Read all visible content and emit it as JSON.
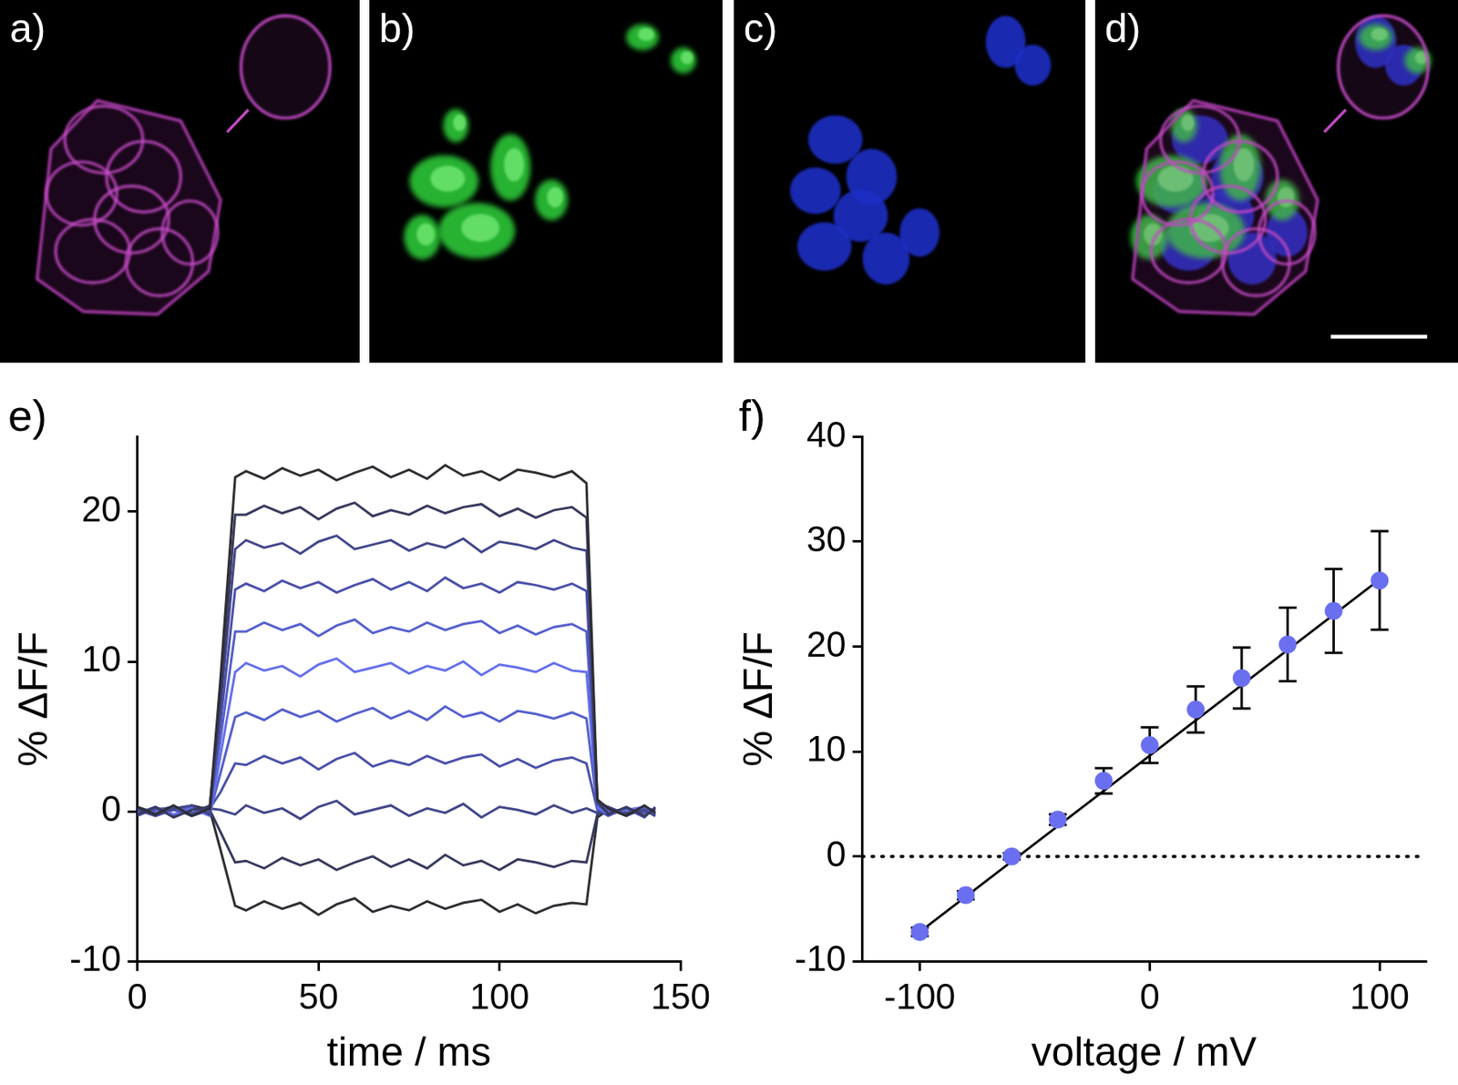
{
  "image_panels": [
    {
      "label": "a)"
    },
    {
      "label": "b)"
    },
    {
      "label": "c)"
    },
    {
      "label": "d)"
    }
  ],
  "chart_data": [
    {
      "panel_label": "e)",
      "type": "line",
      "x_label": "time / ms",
      "y_label": "% ΔF/F",
      "x": [
        0,
        5,
        10,
        15,
        20,
        23,
        27,
        30,
        35,
        40,
        45,
        50,
        55,
        60,
        65,
        70,
        75,
        80,
        85,
        90,
        95,
        100,
        105,
        110,
        115,
        120,
        124,
        127,
        130,
        135,
        140,
        143
      ],
      "series": [
        {
          "color": "#2e2e33",
          "values": [
            0.3,
            -0.2,
            0.4,
            -0.3,
            0.2,
            9.0,
            22.3,
            22.7,
            22.2,
            22.9,
            22.4,
            22.8,
            22.1,
            22.6,
            23.0,
            22.3,
            22.8,
            22.2,
            23.1,
            22.4,
            22.7,
            22.1,
            22.8,
            22.6,
            22.3,
            22.7,
            21.9,
            0.8,
            0.2,
            -0.3,
            0.4,
            -0.1
          ]
        },
        {
          "color": "#383a5e",
          "values": [
            -0.2,
            0.3,
            -0.4,
            0.1,
            0.3,
            8.0,
            19.8,
            19.8,
            20.4,
            19.9,
            20.3,
            19.5,
            20.2,
            20.6,
            19.7,
            20.1,
            19.8,
            20.4,
            19.9,
            20.3,
            20.5,
            19.7,
            20.2,
            19.6,
            20.1,
            20.3,
            19.6,
            0.7,
            -0.2,
            0.3,
            -0.3,
            0.2
          ]
        },
        {
          "color": "#42468a",
          "values": [
            0.1,
            -0.3,
            0.2,
            0.4,
            -0.2,
            7.1,
            17.5,
            18.1,
            17.6,
            17.9,
            17.2,
            18.0,
            18.4,
            17.5,
            17.8,
            18.1,
            17.4,
            17.9,
            17.6,
            18.2,
            17.3,
            18.0,
            17.8,
            17.5,
            18.1,
            17.6,
            17.4,
            0.6,
            0.3,
            -0.2,
            0.1,
            -0.3
          ]
        },
        {
          "color": "#4a50aa",
          "values": [
            -0.3,
            0.2,
            0.1,
            -0.2,
            0.4,
            6.0,
            14.8,
            15.2,
            14.7,
            15.4,
            14.9,
            15.3,
            14.6,
            15.1,
            15.5,
            14.8,
            15.3,
            14.7,
            15.6,
            14.9,
            15.2,
            14.6,
            15.3,
            15.1,
            14.8,
            15.2,
            14.7,
            0.5,
            -0.1,
            0.2,
            -0.4,
            0.3
          ]
        },
        {
          "color": "#5560cc",
          "values": [
            0.2,
            -0.1,
            0.3,
            -0.3,
            0.1,
            4.9,
            12.0,
            12.0,
            12.6,
            12.1,
            12.5,
            11.7,
            12.4,
            12.8,
            11.9,
            12.3,
            12.0,
            12.6,
            12.1,
            12.5,
            12.7,
            11.9,
            12.4,
            11.8,
            12.3,
            12.5,
            12.0,
            0.4,
            0.2,
            -0.3,
            0.2,
            0.1
          ]
        },
        {
          "color": "#6470ec",
          "values": [
            -0.1,
            0.3,
            -0.2,
            0.2,
            -0.3,
            3.8,
            9.3,
            9.9,
            9.4,
            9.7,
            9.0,
            9.8,
            10.2,
            9.3,
            9.6,
            9.9,
            9.2,
            9.7,
            9.4,
            10.0,
            9.1,
            9.8,
            9.6,
            9.3,
            9.9,
            9.4,
            9.3,
            0.3,
            -0.2,
            0.1,
            0.3,
            -0.2
          ]
        },
        {
          "color": "#5560cc",
          "values": [
            0.2,
            -0.3,
            0.1,
            0.3,
            -0.1,
            2.6,
            6.3,
            6.6,
            6.1,
            6.8,
            6.3,
            6.7,
            6.0,
            6.5,
            6.9,
            6.2,
            6.7,
            6.1,
            7.0,
            6.3,
            6.6,
            6.0,
            6.7,
            6.5,
            6.2,
            6.6,
            6.2,
            0.2,
            0.1,
            -0.2,
            0.3,
            0.0
          ]
        },
        {
          "color": "#4a50aa",
          "values": [
            -0.2,
            0.1,
            0.3,
            -0.1,
            0.2,
            1.3,
            3.2,
            3.1,
            3.7,
            3.2,
            3.6,
            2.8,
            3.5,
            3.9,
            3.0,
            3.4,
            3.1,
            3.7,
            3.2,
            3.6,
            3.8,
            3.0,
            3.5,
            2.9,
            3.4,
            3.6,
            3.2,
            0.1,
            -0.3,
            0.2,
            -0.1,
            0.2
          ]
        },
        {
          "color": "#42468a",
          "values": [
            0.1,
            -0.2,
            0.3,
            -0.1,
            0.2,
            0.1,
            -0.2,
            0.4,
            -0.1,
            0.2,
            -0.5,
            0.3,
            0.7,
            -0.2,
            0.1,
            0.4,
            -0.3,
            0.2,
            -0.1,
            0.5,
            -0.4,
            0.3,
            0.1,
            -0.2,
            0.4,
            -0.1,
            0.2,
            -0.1,
            0.3,
            -0.2,
            0.1,
            -0.3
          ]
        },
        {
          "color": "#383a5e",
          "values": [
            0.3,
            -0.1,
            0.2,
            -0.3,
            0.1,
            -1.4,
            -3.4,
            -3.3,
            -3.8,
            -3.1,
            -3.6,
            -3.2,
            -3.9,
            -3.4,
            -3.0,
            -3.7,
            -3.2,
            -3.8,
            -2.9,
            -3.6,
            -3.3,
            -3.9,
            -3.2,
            -3.4,
            -3.7,
            -3.3,
            -3.4,
            -0.2,
            0.2,
            -0.1,
            0.3,
            -0.2
          ]
        },
        {
          "color": "#2e2e33",
          "values": [
            -0.1,
            0.2,
            -0.3,
            0.4,
            0.1,
            -2.6,
            -6.3,
            -6.6,
            -6.0,
            -6.5,
            -6.1,
            -6.9,
            -6.2,
            -5.8,
            -6.7,
            -6.3,
            -6.6,
            -6.0,
            -6.5,
            -6.1,
            -5.9,
            -6.7,
            -6.2,
            -6.8,
            -6.3,
            -6.1,
            -6.2,
            -0.4,
            0.1,
            -0.2,
            0.2,
            -0.1
          ]
        }
      ],
      "xlim": [
        0,
        150
      ],
      "xticks": [
        0,
        50,
        100,
        150
      ],
      "ylim": [
        -10,
        25
      ],
      "yticks": [
        -10,
        0,
        10,
        20
      ],
      "grid": false
    },
    {
      "panel_label": "f)",
      "type": "scatter",
      "x_label": "voltage / mV",
      "y_label": "% ΔF/F",
      "x": [
        -100,
        -80,
        -60,
        -40,
        -20,
        0,
        20,
        40,
        60,
        80,
        100
      ],
      "values": [
        -7.2,
        -3.7,
        0.0,
        3.5,
        7.2,
        10.6,
        14.0,
        17.0,
        20.2,
        23.4,
        26.3
      ],
      "errors": [
        0.4,
        0.4,
        0.3,
        0.5,
        1.2,
        1.7,
        2.2,
        2.9,
        3.5,
        4.0,
        4.7
      ],
      "color": "#6a6ff0",
      "marker": "circle",
      "fit": {
        "x": [
          -100,
          100
        ],
        "values": [
          -7.2,
          26.4
        ]
      },
      "hline": {
        "value": 0,
        "line_style": "dotted"
      },
      "xlim": [
        -125,
        120
      ],
      "xticks": [
        -100,
        0,
        100
      ],
      "ylim": [
        -10,
        40
      ],
      "yticks": [
        -10,
        0,
        10,
        20,
        30,
        40
      ],
      "grid": false
    }
  ]
}
